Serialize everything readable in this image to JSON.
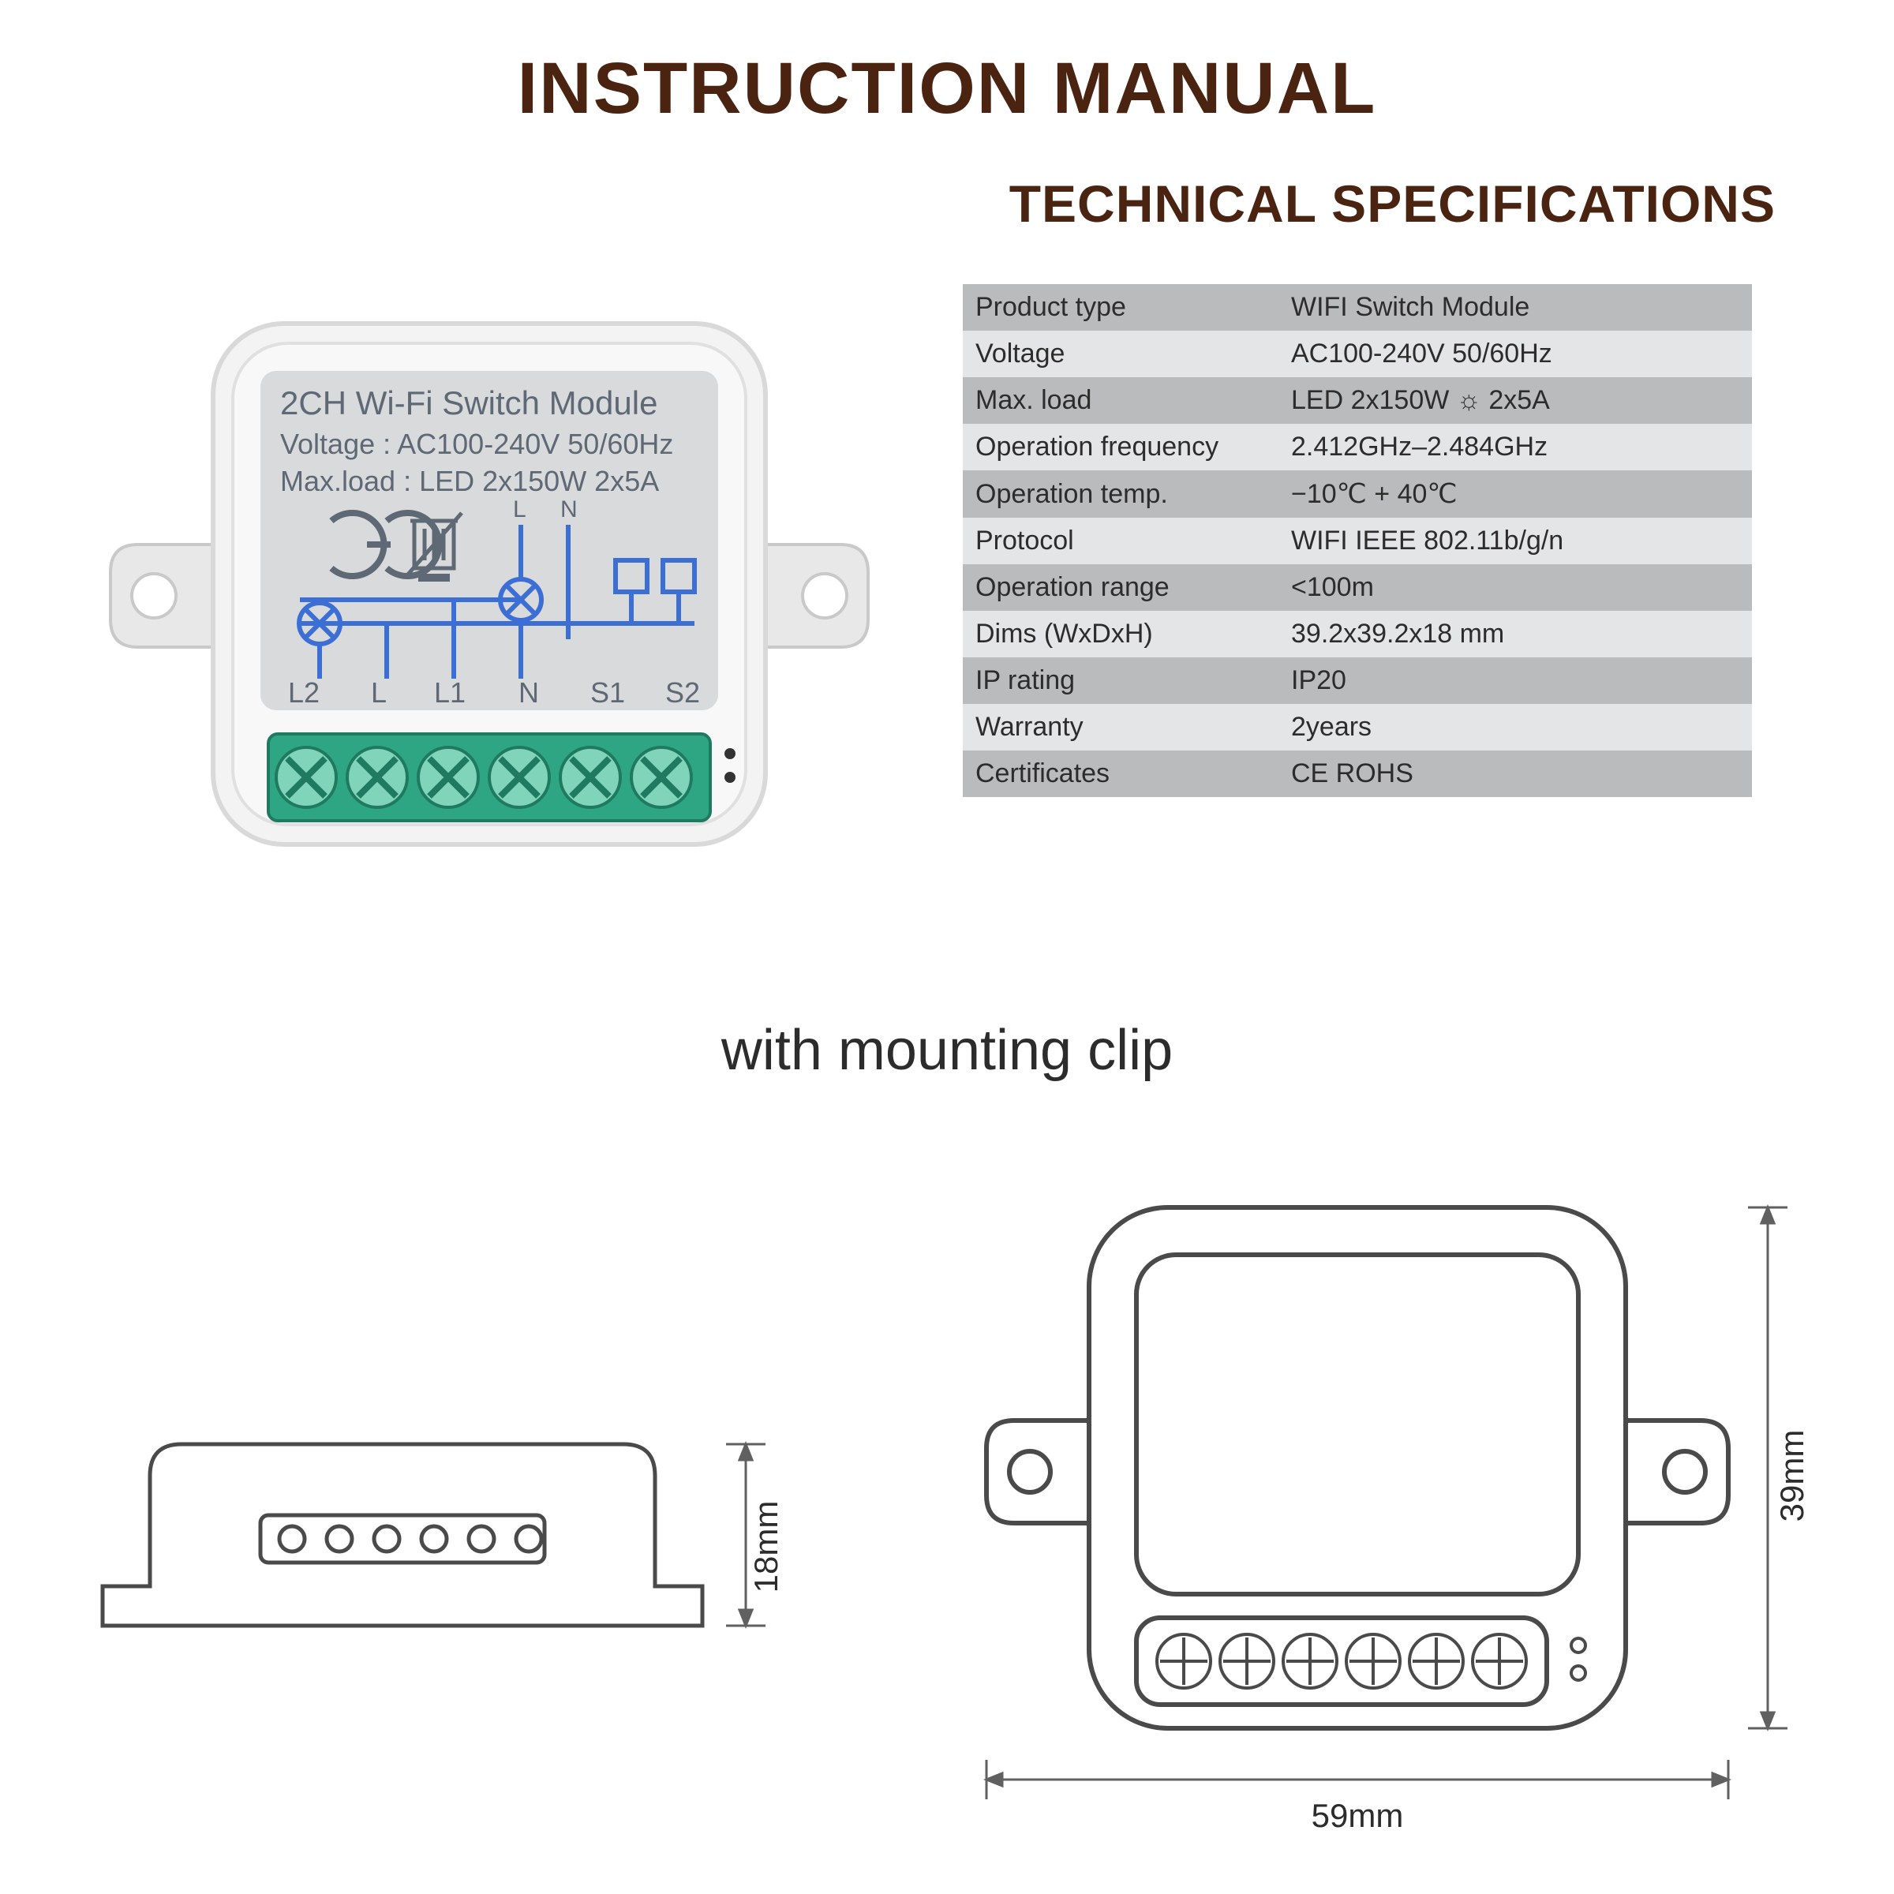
{
  "titles": {
    "main": "INSTRUCTION MANUAL",
    "sub": "TECHNICAL SPECIFICATIONS",
    "mount": "with mounting clip"
  },
  "colors": {
    "heading": "#4a2410",
    "text": "#2c2c2c",
    "table_dark": "#b9bbbd",
    "table_light": "#e4e5e6",
    "module_body": "#f3f3f3",
    "module_edge": "#d9d9da",
    "label_bg": "#d8dadc",
    "label_text": "#5f6875",
    "wire_blue": "#3b6fd6",
    "terminal_green": "#2fa683",
    "terminal_green_dark": "#1f7a60",
    "outline": "#4a4a4a",
    "dim_line": "#606060"
  },
  "module_label": {
    "line1": "2CH Wi-Fi Switch Module",
    "line2": "Voltage : AC100-240V 50/60Hz",
    "line3": "Max.load : LED 2x150W  2x5A",
    "ln_left": "L",
    "ln_right": "N",
    "terminals": [
      "L2",
      "L",
      "L1",
      "N",
      "S1",
      "S2"
    ]
  },
  "spec_rows": [
    {
      "label": "Product type",
      "value": "WIFI Switch Module",
      "shade": "dark"
    },
    {
      "label": "Voltage",
      "value": "AC100-240V 50/60Hz",
      "shade": "light"
    },
    {
      "label": "Max. load",
      "value": "LED 2x150W ☼ 2x5A",
      "shade": "dark"
    },
    {
      "label": "Operation frequency",
      "value": "2.412GHz–2.484GHz",
      "shade": "light"
    },
    {
      "label": "Operation temp.",
      "value": "−10℃ + 40℃",
      "shade": "dark"
    },
    {
      "label": "Protocol",
      "value": "WIFI  IEEE 802.11b/g/n",
      "shade": "light"
    },
    {
      "label": "Operation range",
      "value": "<100m",
      "shade": "dark"
    },
    {
      "label": "Dims (WxDxH)",
      "value": "39.2x39.2x18 mm",
      "shade": "light"
    },
    {
      "label": "IP rating",
      "value": "IP20",
      "shade": "dark"
    },
    {
      "label": "Warranty",
      "value": "2years",
      "shade": "light"
    },
    {
      "label": "Certificates",
      "value": "CE ROHS",
      "shade": "dark"
    }
  ],
  "dims": {
    "height": "18mm",
    "width": "59mm",
    "depth": "39mm"
  },
  "diagram_style": {
    "stroke_width_heavy": 6,
    "stroke_width_normal": 4,
    "stroke_width_thin": 2,
    "corner_radius_outer": 70,
    "corner_radius_inner": 30,
    "terminal_count": 6,
    "font_module_title": 42,
    "font_module_lines": 36,
    "font_terminal": 36,
    "font_dim": 42
  }
}
